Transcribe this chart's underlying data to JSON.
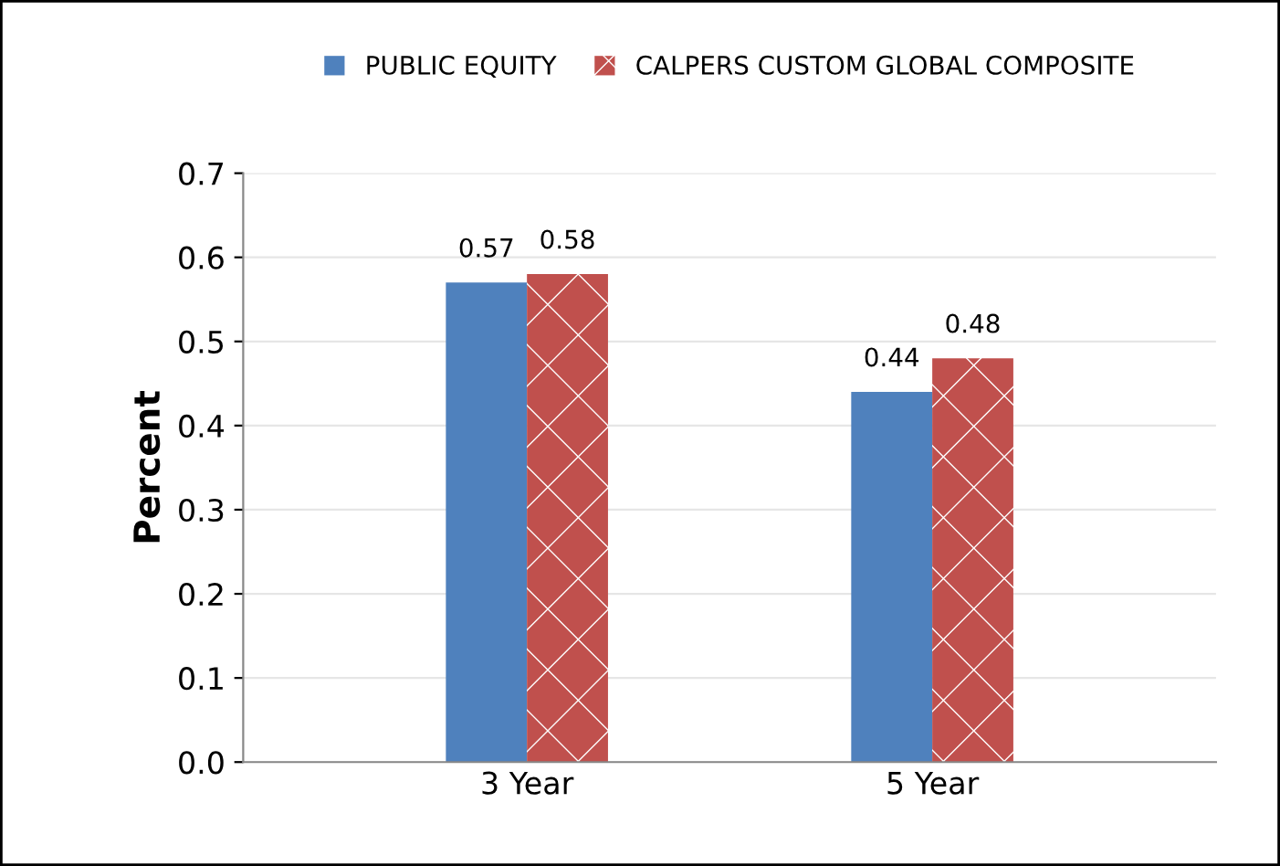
{
  "chart_data": {
    "type": "bar",
    "ylabel": "Percent",
    "categories": [
      "3 Year",
      "5 Year"
    ],
    "series": [
      {
        "name": "PUBLIC EQUITY",
        "color": "#4f81bd",
        "values": [
          0.57,
          0.44
        ]
      },
      {
        "name": "CALPERS CUSTOM GLOBAL COMPOSITE",
        "color": "#c0504d",
        "values": [
          0.58,
          0.48
        ]
      }
    ],
    "ylim": [
      0,
      0.7
    ],
    "yticks": [
      "0.0",
      0.1,
      0.2,
      0.3,
      0.4,
      0.5,
      0.6,
      0.7
    ],
    "grid": "y",
    "legend": "top",
    "data_labels": true
  }
}
